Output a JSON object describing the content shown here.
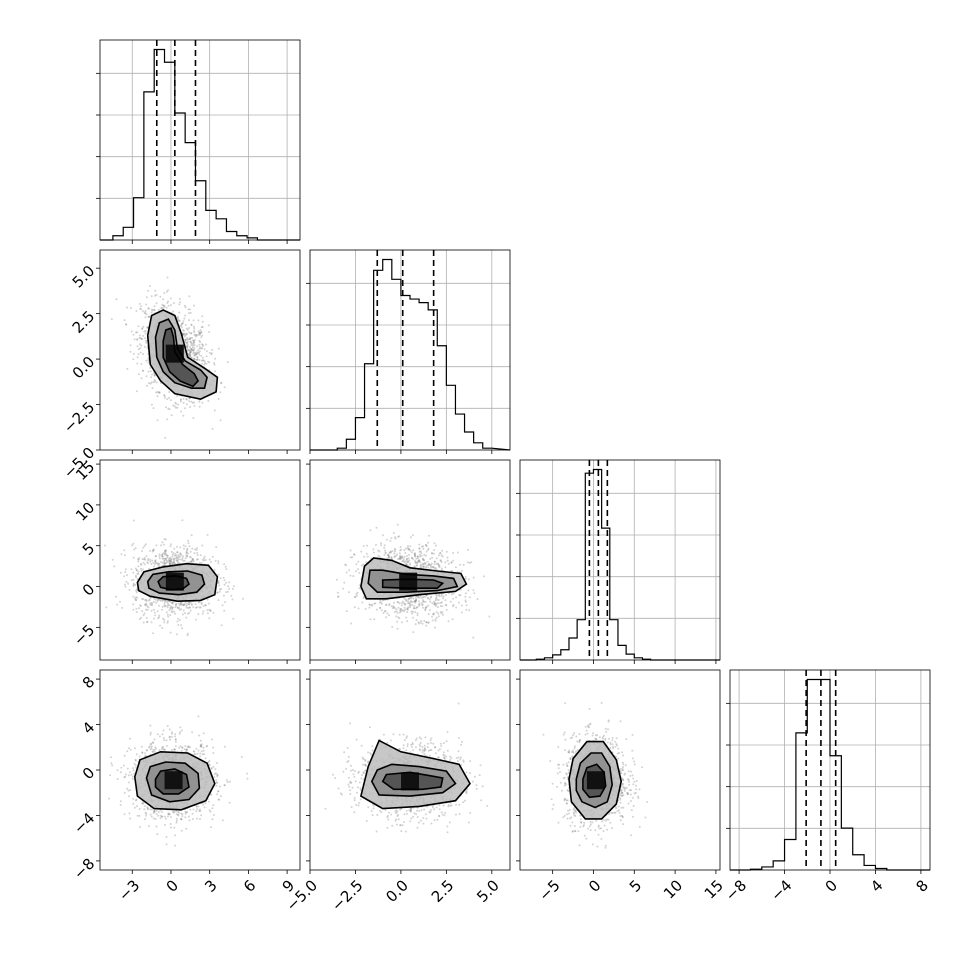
{
  "chart_data": {
    "type": "corner",
    "grid": true,
    "params": [
      {
        "range": [
          -5.5,
          10
        ],
        "ticks": [
          -3,
          0,
          3,
          6,
          9
        ],
        "tick_labels": [
          "−3",
          "0",
          "3",
          "6",
          "9"
        ],
        "quantiles": [
          -1.1,
          0.3,
          1.9
        ],
        "hist": {
          "edges": [
            -4.5,
            -3.7,
            -2.9,
            -2.1,
            -1.3,
            -0.5,
            0.3,
            1.1,
            1.9,
            2.7,
            3.5,
            4.3,
            5.1,
            5.9,
            6.7,
            7.5
          ],
          "counts": [
            2,
            6,
            20,
            70,
            90,
            84,
            60,
            46,
            28,
            14,
            10,
            4,
            2,
            1,
            0
          ]
        }
      },
      {
        "range": [
          -5.0,
          6.0
        ],
        "ticks": [
          -5.0,
          -2.5,
          0.0,
          2.5,
          5.0
        ],
        "tick_labels": [
          "−5.0",
          "−2.5",
          "0.0",
          "2.5",
          "5.0"
        ],
        "quantiles": [
          -1.3,
          0.1,
          1.8
        ],
        "hist": {
          "edges": [
            -3.5,
            -3.0,
            -2.5,
            -2.0,
            -1.5,
            -1.0,
            -0.5,
            0.0,
            0.5,
            1.0,
            1.5,
            2.0,
            2.5,
            3.0,
            3.5,
            4.0,
            4.5,
            5.0
          ],
          "counts": [
            1,
            6,
            18,
            48,
            100,
            106,
            95,
            86,
            84,
            82,
            78,
            58,
            36,
            20,
            10,
            4,
            1
          ]
        }
      },
      {
        "range": [
          -9,
          15.5
        ],
        "ticks": [
          -5,
          0,
          5,
          10,
          15
        ],
        "tick_labels": [
          "−5",
          "0",
          "5",
          "10",
          "15"
        ],
        "quantiles": [
          -0.5,
          0.6,
          1.7
        ],
        "hist": {
          "edges": [
            -7,
            -6,
            -5,
            -4,
            -3,
            -2,
            -1,
            0,
            1,
            2,
            3,
            4,
            5,
            6,
            7,
            8
          ],
          "counts": [
            1,
            3,
            7,
            14,
            30,
            55,
            255,
            260,
            180,
            55,
            20,
            8,
            3,
            1,
            0
          ]
        }
      },
      {
        "range": [
          -8.8,
          8.8
        ],
        "ticks": [
          -8,
          -4,
          0,
          4,
          8
        ],
        "tick_labels": [
          "−8",
          "−4",
          "0",
          "4",
          "8"
        ],
        "quantiles": [
          -2.1,
          -0.8,
          0.5
        ],
        "hist": {
          "edges": [
            -7,
            -6,
            -5,
            -4,
            -3,
            -2,
            -1,
            0,
            1,
            2,
            3,
            4,
            5,
            6
          ],
          "counts": [
            1,
            4,
            12,
            40,
            180,
            250,
            250,
            150,
            55,
            20,
            6,
            2,
            0
          ]
        }
      }
    ],
    "pairs": [
      {
        "row": 1,
        "col": 0,
        "center": [
          0.3,
          0.3
        ],
        "spread": [
          1.3,
          1.3
        ],
        "rho": -0.35,
        "contours": [
          [
            [
              -1.8,
              1.3
            ],
            [
              -1.5,
              2.4
            ],
            [
              -0.6,
              2.7
            ],
            [
              0.3,
              2.4
            ],
            [
              0.8,
              1.4
            ],
            [
              1.3,
              0.1
            ],
            [
              2.6,
              -0.5
            ],
            [
              3.6,
              -1.0
            ],
            [
              3.5,
              -1.8
            ],
            [
              2.3,
              -2.2
            ],
            [
              0.3,
              -1.9
            ],
            [
              -0.8,
              -1.2
            ],
            [
              -1.6,
              -0.3
            ]
          ],
          [
            [
              -1.2,
              1.2
            ],
            [
              -0.9,
              2.0
            ],
            [
              -0.2,
              2.2
            ],
            [
              0.3,
              1.6
            ],
            [
              0.5,
              0.6
            ],
            [
              1.1,
              -0.1
            ],
            [
              2.3,
              -0.6
            ],
            [
              2.8,
              -1.0
            ],
            [
              2.6,
              -1.6
            ],
            [
              1.6,
              -1.6
            ],
            [
              0.3,
              -1.3
            ],
            [
              -0.6,
              -0.7
            ],
            [
              -1.1,
              0.1
            ]
          ],
          [
            [
              -0.6,
              1.0
            ],
            [
              -0.4,
              1.6
            ],
            [
              0.0,
              1.7
            ],
            [
              0.2,
              1.2
            ],
            [
              0.3,
              0.4
            ],
            [
              0.9,
              -0.3
            ],
            [
              1.8,
              -0.8
            ],
            [
              2.1,
              -1.2
            ],
            [
              1.7,
              -1.5
            ],
            [
              0.7,
              -1.2
            ],
            [
              -0.1,
              -0.7
            ],
            [
              -0.6,
              0.1
            ]
          ]
        ]
      },
      {
        "row": 2,
        "col": 0,
        "center": [
          0.3,
          0.6
        ],
        "spread": [
          1.6,
          2.1
        ],
        "rho": 0.0,
        "contours": [
          [
            [
              -2.6,
              0.5
            ],
            [
              -2.1,
              1.8
            ],
            [
              -0.6,
              2.4
            ],
            [
              1.2,
              2.8
            ],
            [
              2.9,
              2.6
            ],
            [
              3.6,
              1.2
            ],
            [
              3.4,
              -1.0
            ],
            [
              2.3,
              -1.7
            ],
            [
              0.5,
              -1.8
            ],
            [
              -1.6,
              -1.2
            ],
            [
              -2.5,
              -0.5
            ]
          ],
          [
            [
              -1.8,
              0.6
            ],
            [
              -1.4,
              1.5
            ],
            [
              -0.2,
              1.8
            ],
            [
              1.3,
              1.9
            ],
            [
              2.4,
              1.4
            ],
            [
              2.6,
              0.3
            ],
            [
              2.0,
              -0.7
            ],
            [
              0.6,
              -1.0
            ],
            [
              -0.9,
              -0.8
            ],
            [
              -1.7,
              -0.2
            ]
          ],
          [
            [
              -1.0,
              0.6
            ],
            [
              -0.6,
              1.2
            ],
            [
              0.4,
              1.3
            ],
            [
              1.2,
              1.0
            ],
            [
              1.4,
              0.3
            ],
            [
              0.9,
              -0.3
            ],
            [
              0.0,
              -0.4
            ],
            [
              -0.8,
              -0.1
            ]
          ]
        ]
      },
      {
        "row": 2,
        "col": 1,
        "center": [
          0.4,
          0.6
        ],
        "spread": [
          1.4,
          2.1
        ],
        "rho": -0.1,
        "contours": [
          [
            [
              -2.0,
              2.5
            ],
            [
              -1.5,
              3.5
            ],
            [
              -0.5,
              3.2
            ],
            [
              0.5,
              2.3
            ],
            [
              2.0,
              1.9
            ],
            [
              3.3,
              1.6
            ],
            [
              3.6,
              0.3
            ],
            [
              3.0,
              -0.6
            ],
            [
              1.0,
              -1.0
            ],
            [
              -0.8,
              -1.5
            ],
            [
              -1.9,
              -1.5
            ],
            [
              -2.2,
              0.0
            ]
          ],
          [
            [
              -1.7,
              2.0
            ],
            [
              -1.0,
              2.0
            ],
            [
              0.3,
              1.5
            ],
            [
              1.8,
              1.3
            ],
            [
              2.9,
              1.0
            ],
            [
              3.1,
              0.0
            ],
            [
              2.0,
              -0.5
            ],
            [
              0.3,
              -0.7
            ],
            [
              -1.3,
              -0.7
            ],
            [
              -1.8,
              0.4
            ]
          ],
          [
            [
              -1.0,
              0.8
            ],
            [
              0.4,
              0.9
            ],
            [
              1.8,
              0.8
            ],
            [
              2.3,
              0.4
            ],
            [
              2.0,
              -0.2
            ],
            [
              0.3,
              -0.2
            ],
            [
              -1.0,
              -0.1
            ]
          ]
        ]
      },
      {
        "row": 3,
        "col": 0,
        "center": [
          0.2,
          -0.9
        ],
        "spread": [
          1.6,
          1.7
        ],
        "rho": 0.0,
        "contours": [
          [
            [
              -2.8,
              -0.6
            ],
            [
              -2.4,
              0.9
            ],
            [
              -0.8,
              1.6
            ],
            [
              1.3,
              1.5
            ],
            [
              2.8,
              0.6
            ],
            [
              3.4,
              -1.2
            ],
            [
              2.7,
              -2.7
            ],
            [
              0.8,
              -3.5
            ],
            [
              -1.3,
              -3.4
            ],
            [
              -2.6,
              -2.3
            ]
          ],
          [
            [
              -1.9,
              -0.7
            ],
            [
              -1.6,
              0.3
            ],
            [
              -0.4,
              0.7
            ],
            [
              1.1,
              0.6
            ],
            [
              2.1,
              -0.3
            ],
            [
              2.2,
              -1.6
            ],
            [
              1.4,
              -2.6
            ],
            [
              -0.1,
              -2.8
            ],
            [
              -1.5,
              -2.2
            ]
          ],
          [
            [
              -1.2,
              -0.8
            ],
            [
              -0.8,
              -0.1
            ],
            [
              0.3,
              0.1
            ],
            [
              1.2,
              -0.4
            ],
            [
              1.4,
              -1.5
            ],
            [
              0.6,
              -2.1
            ],
            [
              -0.6,
              -2.1
            ],
            [
              -1.2,
              -1.5
            ]
          ]
        ]
      },
      {
        "row": 3,
        "col": 1,
        "center": [
          0.5,
          -1.0
        ],
        "spread": [
          1.4,
          1.6
        ],
        "rho": 0.0,
        "contours": [
          [
            [
              -1.8,
              0.3
            ],
            [
              -1.2,
              2.6
            ],
            [
              0.0,
              1.6
            ],
            [
              1.8,
              1.0
            ],
            [
              3.2,
              0.5
            ],
            [
              3.8,
              -1.2
            ],
            [
              3.0,
              -2.7
            ],
            [
              1.0,
              -3.2
            ],
            [
              -1.0,
              -3.4
            ],
            [
              -2.2,
              -2.3
            ]
          ],
          [
            [
              -1.3,
              0.0
            ],
            [
              -0.5,
              0.5
            ],
            [
              1.0,
              0.3
            ],
            [
              2.5,
              -0.1
            ],
            [
              3.0,
              -1.2
            ],
            [
              2.3,
              -2.0
            ],
            [
              0.5,
              -2.3
            ],
            [
              -1.2,
              -2.2
            ],
            [
              -1.6,
              -1.0
            ]
          ],
          [
            [
              -0.8,
              -0.4
            ],
            [
              0.5,
              -0.2
            ],
            [
              1.6,
              -0.5
            ],
            [
              2.3,
              -0.7
            ],
            [
              2.2,
              -1.5
            ],
            [
              1.2,
              -1.7
            ],
            [
              -0.4,
              -1.7
            ],
            [
              -1.0,
              -1.0
            ]
          ]
        ]
      },
      {
        "row": 3,
        "col": 2,
        "center": [
          0.3,
          -0.9
        ],
        "spread": [
          1.9,
          1.9
        ],
        "rho": 0.0,
        "contours": [
          [
            [
              -3.0,
              -0.8
            ],
            [
              -2.5,
              1.0
            ],
            [
              -0.8,
              2.5
            ],
            [
              1.2,
              2.5
            ],
            [
              2.8,
              0.9
            ],
            [
              3.4,
              -1.0
            ],
            [
              2.8,
              -3.0
            ],
            [
              1.0,
              -4.3
            ],
            [
              -1.0,
              -4.3
            ],
            [
              -2.7,
              -2.8
            ]
          ],
          [
            [
              -2.1,
              -0.8
            ],
            [
              -1.6,
              0.6
            ],
            [
              -0.3,
              1.5
            ],
            [
              1.0,
              1.5
            ],
            [
              2.0,
              0.3
            ],
            [
              2.3,
              -1.3
            ],
            [
              1.7,
              -2.8
            ],
            [
              0.2,
              -3.3
            ],
            [
              -1.4,
              -2.8
            ],
            [
              -2.1,
              -1.8
            ]
          ],
          [
            [
              -1.3,
              -0.8
            ],
            [
              -0.8,
              0.2
            ],
            [
              0.4,
              0.5
            ],
            [
              1.3,
              -0.2
            ],
            [
              1.5,
              -1.4
            ],
            [
              0.8,
              -2.3
            ],
            [
              -0.5,
              -2.4
            ],
            [
              -1.3,
              -1.7
            ]
          ]
        ]
      }
    ]
  }
}
